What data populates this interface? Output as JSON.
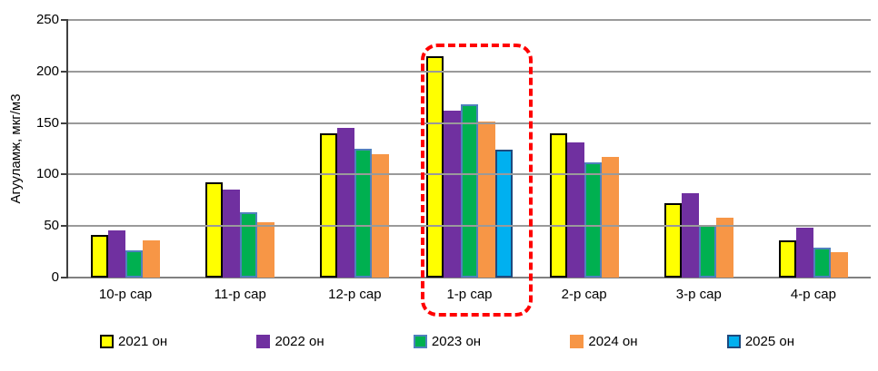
{
  "chart_data": {
    "type": "bar",
    "title": "",
    "xlabel": "",
    "ylabel": "Агууламж, мкг/м3",
    "ylim": [
      0,
      250
    ],
    "yticks": [
      0,
      50,
      100,
      150,
      200,
      250
    ],
    "grid": "horizontal",
    "gridline_color": "#9a9a9a",
    "legend_position": "bottom",
    "categories": [
      "10-р сар",
      "11-р сар",
      "12-р сар",
      "1-р сар",
      "2-р сар",
      "3-р сар",
      "4-р сар"
    ],
    "series": [
      {
        "name": "2021 он",
        "fill": "#FFFF00",
        "border": "#000000",
        "values": [
          41,
          92,
          140,
          215,
          140,
          72,
          36
        ]
      },
      {
        "name": "2022 он",
        "fill": "#7030A0",
        "border": "#7030A0",
        "values": [
          46,
          85,
          145,
          162,
          131,
          82,
          48
        ]
      },
      {
        "name": "2023 он",
        "fill": "#00B050",
        "border": "#4F81BD",
        "values": [
          26,
          63,
          125,
          168,
          112,
          51,
          29
        ]
      },
      {
        "name": "2024 он",
        "fill": "#F79646",
        "border": "#F79646",
        "values": [
          36,
          54,
          120,
          151,
          117,
          58,
          25
        ]
      },
      {
        "name": "2025 он",
        "fill": "#00B0F0",
        "border": "#1F497D",
        "values": [
          null,
          null,
          null,
          124,
          null,
          null,
          null
        ]
      }
    ],
    "highlight": {
      "category": "1-р сар",
      "style": "dashed-rounded-rectangle",
      "color": "#FF0000"
    }
  }
}
